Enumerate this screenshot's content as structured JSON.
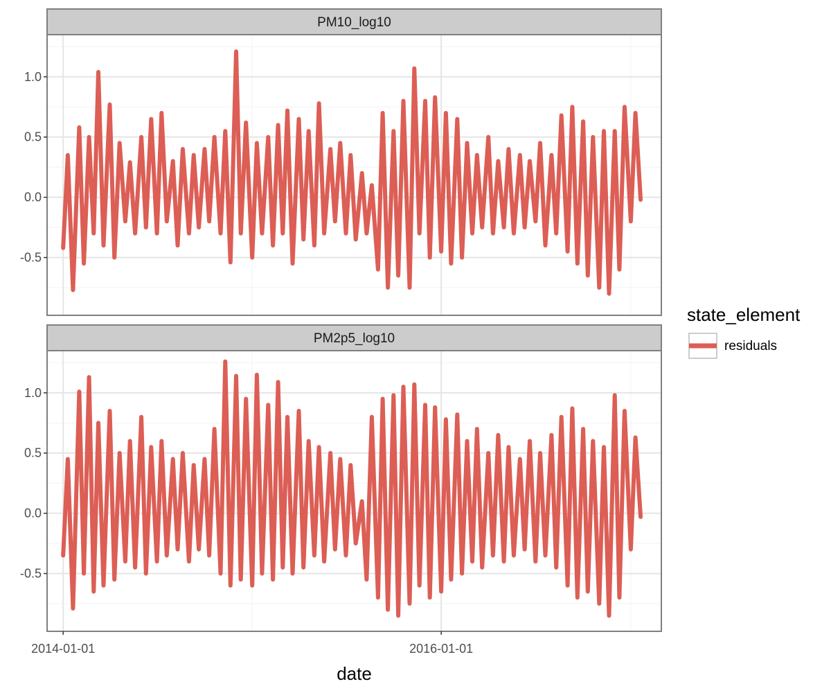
{
  "chart_data": {
    "type": "line",
    "facet_layout": "stacked",
    "x_type": "date",
    "xlabel": "date",
    "xlim": [
      "2013-12-01",
      "2017-03-01"
    ],
    "x_ticks": [
      "2014-01-01",
      "2016-01-01"
    ],
    "x_tick_labels": [
      "2014-01-01",
      "2016-01-01"
    ],
    "y_ticks": [
      -0.5,
      0.0,
      0.5,
      1.0
    ],
    "y_tick_labels": [
      "-0.5",
      "0.0",
      "0.5",
      "1.0"
    ],
    "grid": true,
    "legend": {
      "title": "state_element",
      "position": "right",
      "items": [
        {
          "label": "residuals",
          "color": "#dc5e55"
        }
      ]
    },
    "panels": [
      {
        "strip": "PM10_log10",
        "ylim": [
          -0.98,
          1.35
        ],
        "series": [
          {
            "name": "residuals",
            "color": "#dc5e55",
            "x": [
              "2014-01-01",
              "2014-01-10",
              "2014-01-20",
              "2014-02-01",
              "2014-02-10",
              "2014-02-20",
              "2014-03-01",
              "2014-03-10",
              "2014-03-20",
              "2014-04-01",
              "2014-04-10",
              "2014-04-20",
              "2014-05-01",
              "2014-05-10",
              "2014-05-20",
              "2014-06-01",
              "2014-06-10",
              "2014-06-20",
              "2014-07-01",
              "2014-07-10",
              "2014-07-20",
              "2014-08-01",
              "2014-08-10",
              "2014-08-20",
              "2014-09-01",
              "2014-09-10",
              "2014-09-20",
              "2014-10-01",
              "2014-10-10",
              "2014-10-20",
              "2014-11-01",
              "2014-11-10",
              "2014-11-20",
              "2014-12-01",
              "2014-12-10",
              "2014-12-20",
              "2015-01-01",
              "2015-01-10",
              "2015-01-20",
              "2015-02-01",
              "2015-02-10",
              "2015-02-20",
              "2015-03-01",
              "2015-03-10",
              "2015-03-20",
              "2015-04-01",
              "2015-04-10",
              "2015-04-20",
              "2015-05-01",
              "2015-05-10",
              "2015-05-20",
              "2015-06-01",
              "2015-06-10",
              "2015-06-20",
              "2015-07-01",
              "2015-07-10",
              "2015-07-20",
              "2015-08-01",
              "2015-08-10",
              "2015-08-20",
              "2015-09-01",
              "2015-09-10",
              "2015-09-20",
              "2015-10-01",
              "2015-10-10",
              "2015-10-20",
              "2015-11-01",
              "2015-11-10",
              "2015-11-20",
              "2015-12-01",
              "2015-12-10",
              "2015-12-20",
              "2016-01-01",
              "2016-01-10",
              "2016-01-20",
              "2016-02-01",
              "2016-02-10",
              "2016-02-20",
              "2016-03-01",
              "2016-03-10",
              "2016-03-20",
              "2016-04-01",
              "2016-04-10",
              "2016-04-20",
              "2016-05-01",
              "2016-05-10",
              "2016-05-20",
              "2016-06-01",
              "2016-06-10",
              "2016-06-20",
              "2016-07-01",
              "2016-07-10",
              "2016-07-20",
              "2016-08-01",
              "2016-08-10",
              "2016-08-20",
              "2016-09-01",
              "2016-09-10",
              "2016-09-20",
              "2016-10-01",
              "2016-10-10",
              "2016-10-20",
              "2016-11-01",
              "2016-11-10",
              "2016-11-20",
              "2016-12-01",
              "2016-12-10",
              "2016-12-20",
              "2017-01-01",
              "2017-01-10",
              "2017-01-20"
            ],
            "y": [
              -0.42,
              0.35,
              -0.77,
              0.58,
              -0.55,
              0.5,
              -0.3,
              1.04,
              -0.4,
              0.77,
              -0.5,
              0.45,
              -0.2,
              0.29,
              -0.3,
              0.5,
              -0.25,
              0.65,
              -0.3,
              0.7,
              -0.2,
              0.3,
              -0.4,
              0.4,
              -0.3,
              0.35,
              -0.25,
              0.4,
              -0.2,
              0.5,
              -0.3,
              0.55,
              -0.54,
              1.21,
              -0.3,
              0.62,
              -0.5,
              0.45,
              -0.3,
              0.5,
              -0.4,
              0.6,
              -0.3,
              0.72,
              -0.55,
              0.65,
              -0.35,
              0.55,
              -0.4,
              0.78,
              -0.3,
              0.4,
              -0.2,
              0.45,
              -0.3,
              0.35,
              -0.35,
              0.2,
              -0.3,
              0.1,
              -0.6,
              0.7,
              -0.75,
              0.55,
              -0.65,
              0.8,
              -0.75,
              1.07,
              -0.3,
              0.8,
              -0.5,
              0.83,
              -0.45,
              0.7,
              -0.55,
              0.65,
              -0.5,
              0.45,
              -0.3,
              0.35,
              -0.25,
              0.5,
              -0.3,
              0.3,
              -0.25,
              0.4,
              -0.3,
              0.35,
              -0.25,
              0.3,
              -0.2,
              0.45,
              -0.4,
              0.35,
              -0.3,
              0.68,
              -0.45,
              0.75,
              -0.55,
              0.63,
              -0.65,
              0.5,
              -0.75,
              0.55,
              -0.8,
              0.55,
              -0.6,
              0.75,
              -0.2,
              0.7,
              -0.02
            ]
          }
        ]
      },
      {
        "strip": "PM2p5_log10",
        "ylim": [
          -0.98,
          1.35
        ],
        "series": [
          {
            "name": "residuals",
            "color": "#dc5e55",
            "x": [
              "2014-01-01",
              "2014-01-10",
              "2014-01-20",
              "2014-02-01",
              "2014-02-10",
              "2014-02-20",
              "2014-03-01",
              "2014-03-10",
              "2014-03-20",
              "2014-04-01",
              "2014-04-10",
              "2014-04-20",
              "2014-05-01",
              "2014-05-10",
              "2014-05-20",
              "2014-06-01",
              "2014-06-10",
              "2014-06-20",
              "2014-07-01",
              "2014-07-10",
              "2014-07-20",
              "2014-08-01",
              "2014-08-10",
              "2014-08-20",
              "2014-09-01",
              "2014-09-10",
              "2014-09-20",
              "2014-10-01",
              "2014-10-10",
              "2014-10-20",
              "2014-11-01",
              "2014-11-10",
              "2014-11-20",
              "2014-12-01",
              "2014-12-10",
              "2014-12-20",
              "2015-01-01",
              "2015-01-10",
              "2015-01-20",
              "2015-02-01",
              "2015-02-10",
              "2015-02-20",
              "2015-03-01",
              "2015-03-10",
              "2015-03-20",
              "2015-04-01",
              "2015-04-10",
              "2015-04-20",
              "2015-05-01",
              "2015-05-10",
              "2015-05-20",
              "2015-06-01",
              "2015-06-10",
              "2015-06-20",
              "2015-07-01",
              "2015-07-10",
              "2015-07-20",
              "2015-08-01",
              "2015-08-10",
              "2015-08-20",
              "2015-09-01",
              "2015-09-10",
              "2015-09-20",
              "2015-10-01",
              "2015-10-10",
              "2015-10-20",
              "2015-11-01",
              "2015-11-10",
              "2015-11-20",
              "2015-12-01",
              "2015-12-10",
              "2015-12-20",
              "2016-01-01",
              "2016-01-10",
              "2016-01-20",
              "2016-02-01",
              "2016-02-10",
              "2016-02-20",
              "2016-03-01",
              "2016-03-10",
              "2016-03-20",
              "2016-04-01",
              "2016-04-10",
              "2016-04-20",
              "2016-05-01",
              "2016-05-10",
              "2016-05-20",
              "2016-06-01",
              "2016-06-10",
              "2016-06-20",
              "2016-07-01",
              "2016-07-10",
              "2016-07-20",
              "2016-08-01",
              "2016-08-10",
              "2016-08-20",
              "2016-09-01",
              "2016-09-10",
              "2016-09-20",
              "2016-10-01",
              "2016-10-10",
              "2016-10-20",
              "2016-11-01",
              "2016-11-10",
              "2016-11-20",
              "2016-12-01",
              "2016-12-10",
              "2016-12-20",
              "2017-01-01",
              "2017-01-10",
              "2017-01-20"
            ],
            "y": [
              -0.35,
              0.45,
              -0.79,
              1.01,
              -0.5,
              1.13,
              -0.65,
              0.75,
              -0.6,
              0.85,
              -0.55,
              0.5,
              -0.4,
              0.6,
              -0.45,
              0.8,
              -0.5,
              0.55,
              -0.4,
              0.6,
              -0.35,
              0.45,
              -0.3,
              0.5,
              -0.4,
              0.4,
              -0.3,
              0.45,
              -0.35,
              0.7,
              -0.5,
              1.26,
              -0.6,
              1.14,
              -0.55,
              0.95,
              -0.6,
              1.15,
              -0.5,
              0.9,
              -0.55,
              1.09,
              -0.45,
              0.8,
              -0.5,
              0.85,
              -0.45,
              0.6,
              -0.35,
              0.55,
              -0.4,
              0.5,
              -0.3,
              0.45,
              -0.35,
              0.4,
              -0.25,
              0.1,
              -0.55,
              0.8,
              -0.7,
              0.95,
              -0.8,
              0.98,
              -0.85,
              1.05,
              -0.75,
              1.07,
              -0.6,
              0.9,
              -0.7,
              0.88,
              -0.65,
              0.78,
              -0.55,
              0.82,
              -0.5,
              0.6,
              -0.4,
              0.7,
              -0.45,
              0.5,
              -0.35,
              0.65,
              -0.4,
              0.55,
              -0.35,
              0.45,
              -0.3,
              0.6,
              -0.4,
              0.5,
              -0.35,
              0.65,
              -0.45,
              0.8,
              -0.6,
              0.87,
              -0.7,
              0.7,
              -0.65,
              0.6,
              -0.75,
              0.55,
              -0.85,
              0.98,
              -0.7,
              0.85,
              -0.3,
              0.63,
              -0.03
            ]
          }
        ]
      }
    ]
  }
}
